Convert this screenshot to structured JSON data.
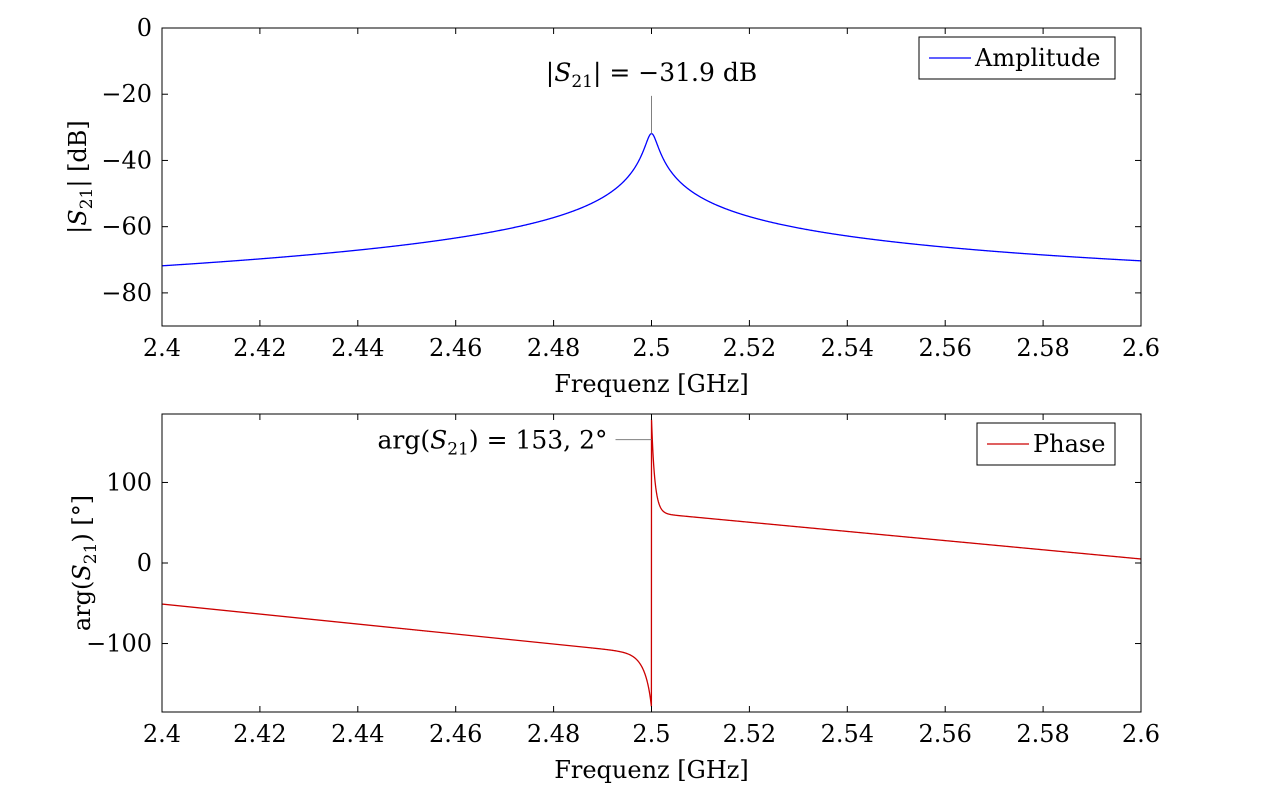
{
  "chart_data": [
    {
      "type": "line",
      "xlabel": "Frequenz [GHz]",
      "ylabel_parts": {
        "pre": "|",
        "var": "S",
        "sub": "21",
        "post": "| [dB]"
      },
      "xlim": [
        2.4,
        2.6
      ],
      "ylim": [
        -90,
        0
      ],
      "xticks": [
        2.4,
        2.42,
        2.44,
        2.46,
        2.48,
        2.5,
        2.52,
        2.54,
        2.56,
        2.58,
        2.6
      ],
      "xtick_labels": [
        "2.4",
        "2.42",
        "2.44",
        "2.46",
        "2.48",
        "2.5",
        "2.52",
        "2.54",
        "2.56",
        "2.58",
        "2.6"
      ],
      "yticks": [
        -80,
        -60,
        -40,
        -20,
        0
      ],
      "ytick_labels": [
        "−80",
        "−60",
        "−40",
        "−20",
        "0"
      ],
      "grid": false,
      "legend_position": "top-right",
      "series": [
        {
          "name": "Amplitude",
          "color": "#0000ff",
          "model": {
            "f0": 2.5,
            "peak_db": -31.9,
            "width_ghz": 0.0011,
            "offset_at_f0": 29.5,
            "slope_db_per_ghz": 9.0
          }
        }
      ],
      "annotation": {
        "x": 2.5,
        "y_line_end": -20.5,
        "parts": {
          "pre": "|",
          "var": "S",
          "sub": "21",
          "post": "| = −31.9 dB"
        }
      }
    },
    {
      "type": "line",
      "xlabel": "Frequenz [GHz]",
      "ylabel_parts": {
        "pre": "arg(",
        "var": "S",
        "sub": "21",
        "post": ") [°]"
      },
      "xlim": [
        2.4,
        2.6
      ],
      "ylim": [
        -185,
        185
      ],
      "xticks": [
        2.4,
        2.42,
        2.44,
        2.46,
        2.48,
        2.5,
        2.52,
        2.54,
        2.56,
        2.58,
        2.6
      ],
      "xtick_labels": [
        "2.4",
        "2.42",
        "2.44",
        "2.46",
        "2.48",
        "2.5",
        "2.52",
        "2.54",
        "2.56",
        "2.58",
        "2.6"
      ],
      "yticks": [
        -100,
        0,
        100
      ],
      "ytick_labels": [
        "−100",
        "0",
        "100"
      ],
      "grid": false,
      "legend_position": "top-right",
      "series": [
        {
          "name": "Phase",
          "color": "#cc0000",
          "model": {
            "f0": 2.5,
            "width_ghz": 0.00018,
            "left_value_at_start": -51,
            "right_value_at_end": 5,
            "jump_max": 178
          }
        }
      ],
      "annotation": {
        "x": 2.5,
        "y": 153.2,
        "parts": {
          "pre": "arg(",
          "var": "S",
          "sub": "21",
          "post": ") = 153, 2°"
        }
      }
    }
  ]
}
